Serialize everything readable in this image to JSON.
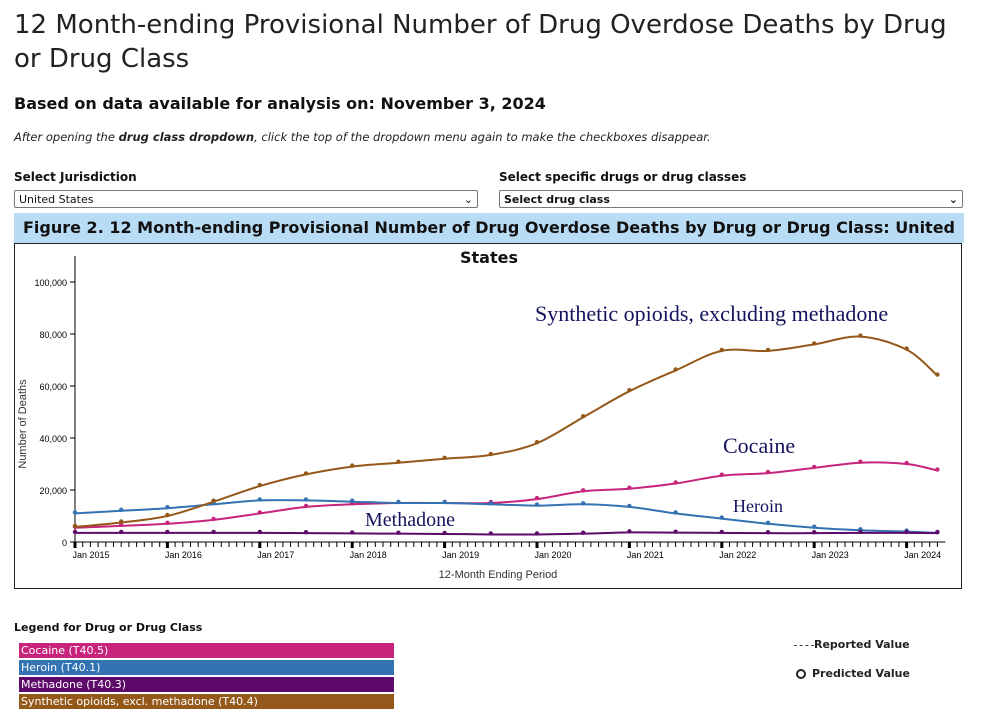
{
  "page": {
    "title": "12 Month-ending Provisional Number of Drug Overdose Deaths by Drug or Drug Class",
    "subtitle": "Based on data available for analysis on: November 3, 2024",
    "note_prefix": "After opening the ",
    "note_bold": "drug class dropdown",
    "note_suffix": ", click the top of the dropdown menu again to make the checkboxes disappear."
  },
  "controls": {
    "jurisdiction_label": "Select Jurisdiction",
    "jurisdiction_value": "United States",
    "drug_label": "Select specific drugs or drug classes",
    "drug_value": "Select drug class"
  },
  "legend": {
    "title": "Legend for Drug or Drug Class",
    "items": [
      "Cocaine (T40.5)",
      "Heroin (T40.1)",
      "Methadone (T40.3)",
      "Synthetic opioids, excl. methadone (T40.4)"
    ],
    "reported": "Reported Value",
    "predicted": "Predicted Value"
  },
  "chart_data": {
    "type": "line",
    "title": "Figure 2. 12 Month-ending Provisional Number of Drug Overdose Deaths by Drug or Drug Class: United States",
    "xlabel": "12-Month Ending Period",
    "ylabel": "Number of Deaths",
    "ylim": [
      0,
      110000
    ],
    "yticks": [
      "0",
      "20,000",
      "40,000",
      "60,000",
      "80,000",
      "100,000"
    ],
    "xticks": [
      "Jan 2015",
      "Jan 2016",
      "Jan 2017",
      "Jan 2018",
      "Jan 2019",
      "Jan 2020",
      "Jan 2021",
      "Jan 2022",
      "Jan 2023",
      "Jan 2024"
    ],
    "grid": false,
    "x": [
      "2015-01",
      "2015-07",
      "2016-01",
      "2016-07",
      "2017-01",
      "2017-07",
      "2018-01",
      "2018-07",
      "2019-01",
      "2019-07",
      "2020-01",
      "2020-07",
      "2021-01",
      "2021-07",
      "2022-01",
      "2022-07",
      "2023-01",
      "2023-07",
      "2024-01",
      "2024-05"
    ],
    "series": [
      {
        "name": "Cocaine",
        "color": "#c7247c",
        "values": [
          5500,
          6200,
          7000,
          8500,
          11000,
          13500,
          14500,
          15000,
          15000,
          15000,
          16500,
          19500,
          20500,
          22500,
          25500,
          26500,
          28500,
          30500,
          30000,
          27500
        ]
      },
      {
        "name": "Heroin",
        "color": "#3373b3",
        "values": [
          11000,
          12000,
          13000,
          14500,
          16000,
          16000,
          15500,
          15000,
          15000,
          14500,
          14000,
          14500,
          13500,
          11000,
          9000,
          7000,
          5500,
          4500,
          4000,
          3500
        ]
      },
      {
        "name": "Methadone",
        "color": "#5e0a6a",
        "values": [
          3500,
          3500,
          3500,
          3500,
          3500,
          3400,
          3300,
          3200,
          3100,
          2900,
          2900,
          3200,
          3700,
          3600,
          3500,
          3400,
          3400,
          3500,
          3500,
          3400
        ]
      },
      {
        "name": "Synthetic opioids, excluding methadone",
        "color": "#94591a",
        "values": [
          5800,
          7500,
          10000,
          15500,
          21500,
          26000,
          29000,
          30500,
          32000,
          33500,
          38000,
          48000,
          58000,
          66000,
          73500,
          73500,
          76000,
          79000,
          74000,
          64000
        ]
      }
    ],
    "annotations": [
      "Synthetic opioids, excluding methadone",
      "Cocaine",
      "Heroin",
      "Methadone"
    ]
  }
}
